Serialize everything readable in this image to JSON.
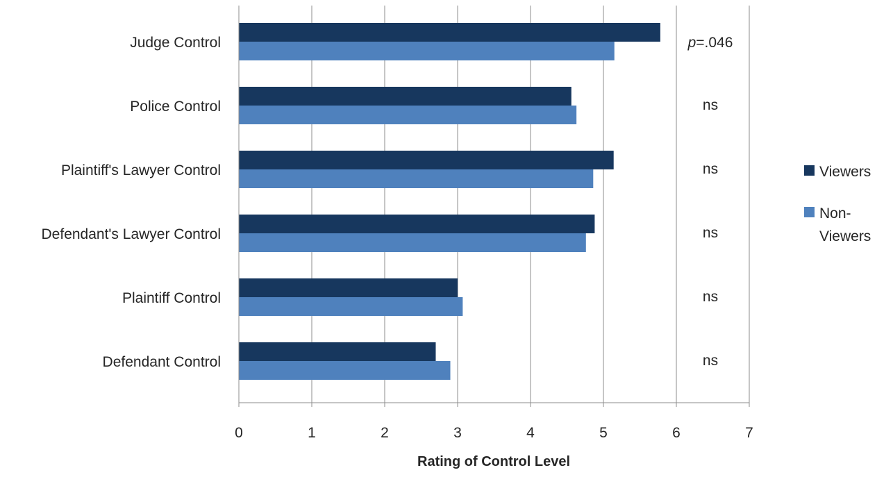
{
  "chart_data": {
    "type": "bar",
    "orientation": "horizontal",
    "title": "",
    "xlabel": "Rating of Control Level",
    "ylabel": "",
    "xlim": [
      0,
      7
    ],
    "xticks": [
      "0",
      "1",
      "2",
      "3",
      "4",
      "5",
      "6",
      "7"
    ],
    "grid": true,
    "legend_position": "right",
    "categories": [
      "Judge Control",
      "Police Control",
      "Plaintiff's Lawyer Control",
      "Defendant's Lawyer Control",
      "Plaintiff Control",
      "Defendant Control"
    ],
    "series": [
      {
        "name": "Viewers",
        "color": "#17375e",
        "values": [
          5.78,
          4.56,
          5.14,
          4.88,
          3.0,
          2.7
        ]
      },
      {
        "name": "Non-Viewers",
        "color": "#4f81bd",
        "values": [
          5.15,
          4.63,
          4.86,
          4.76,
          3.07,
          2.9
        ]
      }
    ],
    "annotations": [
      {
        "prefix": "p",
        "text": "=.046"
      },
      {
        "prefix": "",
        "text": "ns"
      },
      {
        "prefix": "",
        "text": "ns"
      },
      {
        "prefix": "",
        "text": "ns"
      },
      {
        "prefix": "",
        "text": "ns"
      },
      {
        "prefix": "",
        "text": "ns"
      }
    ],
    "legend_lines": [
      [
        "Viewers"
      ],
      [
        "Non-",
        "Viewers"
      ]
    ]
  }
}
